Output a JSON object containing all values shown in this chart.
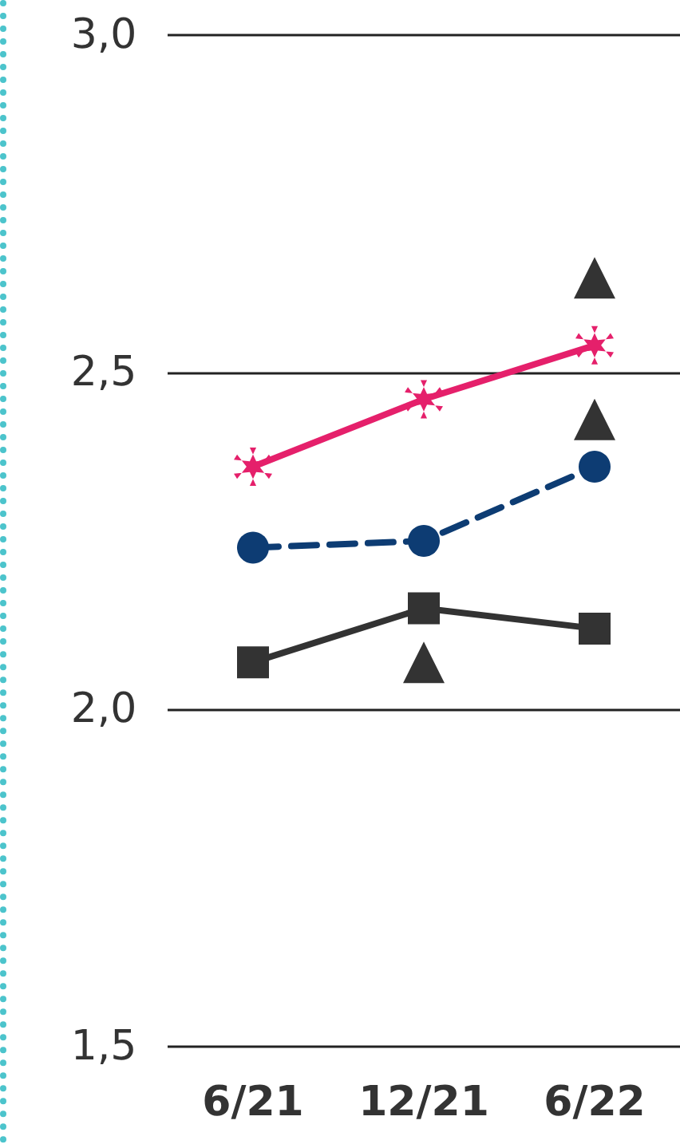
{
  "chart_data": {
    "type": "line",
    "categories": [
      "6/21",
      "12/21",
      "6/22"
    ],
    "ylim": [
      1.5,
      3.0
    ],
    "yticks": [
      {
        "value": 1.5,
        "label": "1,5"
      },
      {
        "value": 2.0,
        "label": "2,0"
      },
      {
        "value": 2.5,
        "label": "2,5"
      },
      {
        "value": 3.0,
        "label": "3,0"
      }
    ],
    "grid": "y",
    "series": [
      {
        "color": "#e5206b",
        "marker": "cross",
        "line_style": "solid",
        "values": [
          2.36,
          2.46,
          2.54
        ]
      },
      {
        "color": "#0d3c73",
        "marker": "circle",
        "line_style": "dashed",
        "values": [
          2.24,
          2.25,
          2.36
        ]
      },
      {
        "color": "#333333",
        "marker": "square",
        "line_style": "solid",
        "values": [
          2.07,
          2.15,
          2.12
        ]
      },
      {
        "type": "scatter",
        "color": "#333333",
        "marker": "triangle",
        "x": [
          "12/21"
        ],
        "values": [
          2.07
        ]
      },
      {
        "type": "scatter",
        "color": "#333333",
        "marker": "triangle",
        "x": [
          "6/22",
          "6/22"
        ],
        "values": [
          2.64,
          2.43
        ]
      }
    ]
  }
}
